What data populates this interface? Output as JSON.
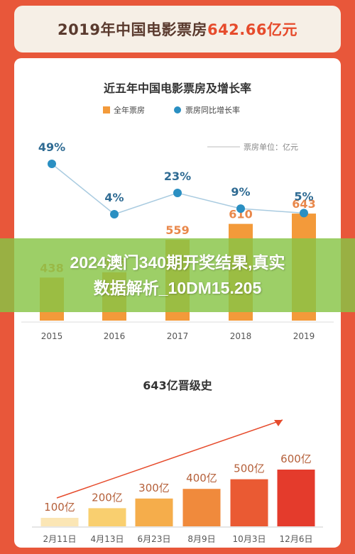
{
  "banner": {
    "year_prefix": "2019年中国电影票房",
    "total": "642.66亿元"
  },
  "chart_data": [
    {
      "type": "bar+line",
      "title": "近五年中国电影票房及增长率",
      "legend": [
        {
          "name": "全年票房",
          "color": "#f39a3a",
          "marker": "square"
        },
        {
          "name": "票房同比增长率",
          "color": "#2a8fc2",
          "marker": "circle"
        }
      ],
      "unit_note": "票房单位：亿元",
      "categories": [
        "2015",
        "2016",
        "2017",
        "2018",
        "2019"
      ],
      "series": [
        {
          "name": "全年票房",
          "type": "bar",
          "values": [
            438,
            455,
            559,
            610,
            643
          ],
          "labels": [
            "438",
            "455",
            "559",
            "610",
            "643"
          ]
        },
        {
          "name": "票房同比增长率",
          "type": "line",
          "values": [
            49,
            4,
            23,
            9,
            5
          ],
          "labels": [
            "49%",
            "4%",
            "23%",
            "9%",
            "5%"
          ]
        }
      ],
      "colors": {
        "bar": "#f39a3a",
        "bar_top": "#f5b36a",
        "line": "#a9cbe0",
        "point": "#2a8fc2"
      }
    },
    {
      "type": "bar",
      "title": "643亿晋级史",
      "categories": [
        "2月11日",
        "4月13日",
        "6月23日",
        "8月9日",
        "10月3日",
        "12月6日"
      ],
      "values": [
        100,
        200,
        300,
        400,
        500,
        600
      ],
      "labels": [
        "100亿",
        "200亿",
        "300亿",
        "400亿",
        "500亿",
        "600亿"
      ],
      "colors": [
        "#fbe6b5",
        "#f9cf6f",
        "#f5ad4b",
        "#f08a3c",
        "#ea5a33",
        "#e43b2c"
      ],
      "accent": "#e64b2c"
    }
  ],
  "overlay": {
    "line1": "2024澳门340期开奖结果,真实",
    "line2": "数据解析_10DM15.205"
  }
}
